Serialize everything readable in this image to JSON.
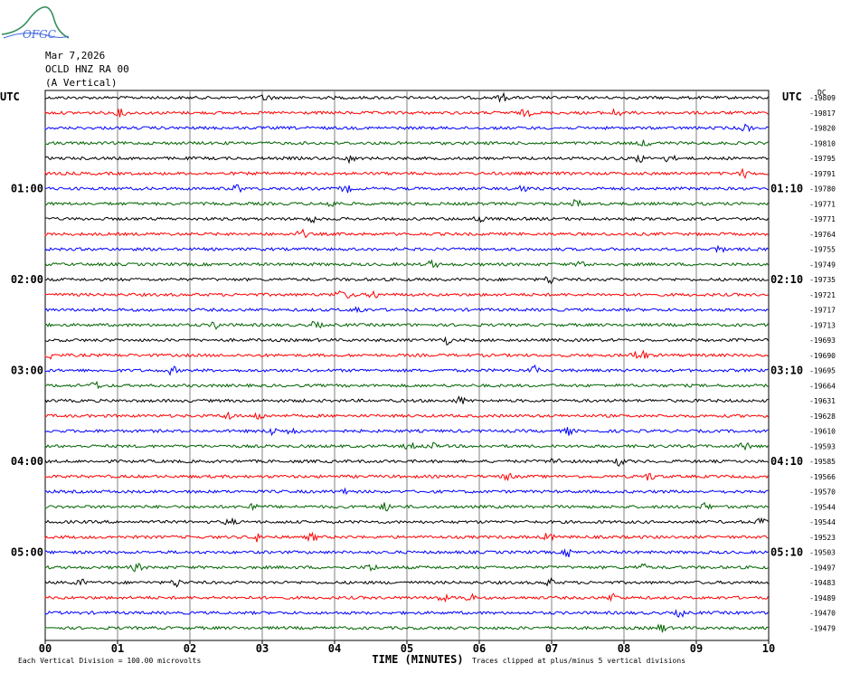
{
  "header": {
    "logo_text": "OFGC",
    "date": "Mar 7,2026",
    "station": "OCLD HNZ RA 00",
    "component": "(A Vertical)"
  },
  "chart_data": {
    "type": "line",
    "left_axis_title": "UTC",
    "right_axis_title": "UTC",
    "right_col_label": "DC",
    "left_hour_labels": [
      {
        "row": 6,
        "label": "01:00"
      },
      {
        "row": 12,
        "label": "02:00"
      },
      {
        "row": 18,
        "label": "03:00"
      },
      {
        "row": 24,
        "label": "04:00"
      },
      {
        "row": 30,
        "label": "05:00"
      }
    ],
    "right_hour_labels": [
      {
        "row": 6,
        "label": "01:10"
      },
      {
        "row": 12,
        "label": "02:10"
      },
      {
        "row": 18,
        "label": "03:10"
      },
      {
        "row": 24,
        "label": "04:10"
      },
      {
        "row": 30,
        "label": "05:10"
      }
    ],
    "dc_offsets": [
      "-19809",
      "-19817",
      "-19820",
      "-19810",
      "-19795",
      "-19791",
      "-19780",
      "-19771",
      "-19771",
      "-19764",
      "-19755",
      "-19749",
      "-19735",
      "-19721",
      "-19717",
      "-19713",
      "-19693",
      "-19690",
      "-19695",
      "-19664",
      "-19631",
      "-19628",
      "-19610",
      "-19593",
      "-19585",
      "-19566",
      "-19570",
      "-19544",
      "-19544",
      "-19523",
      "-19503",
      "-19497",
      "-19483",
      "-19489",
      "-19470",
      "-19479"
    ],
    "trace_colors": [
      "#000000",
      "#ff0000",
      "#0000ff",
      "#006400"
    ],
    "x_ticks": [
      "00",
      "01",
      "02",
      "03",
      "04",
      "05",
      "06",
      "07",
      "08",
      "09",
      "10"
    ],
    "xlabel": "TIME (MINUTES)",
    "xlim": [
      0,
      10
    ],
    "grid": true,
    "footer_left": "Each Vertical Division =  100.00 microvolts",
    "footer_right": "Traces clipped at plus/minus 5 vertical divisions"
  }
}
